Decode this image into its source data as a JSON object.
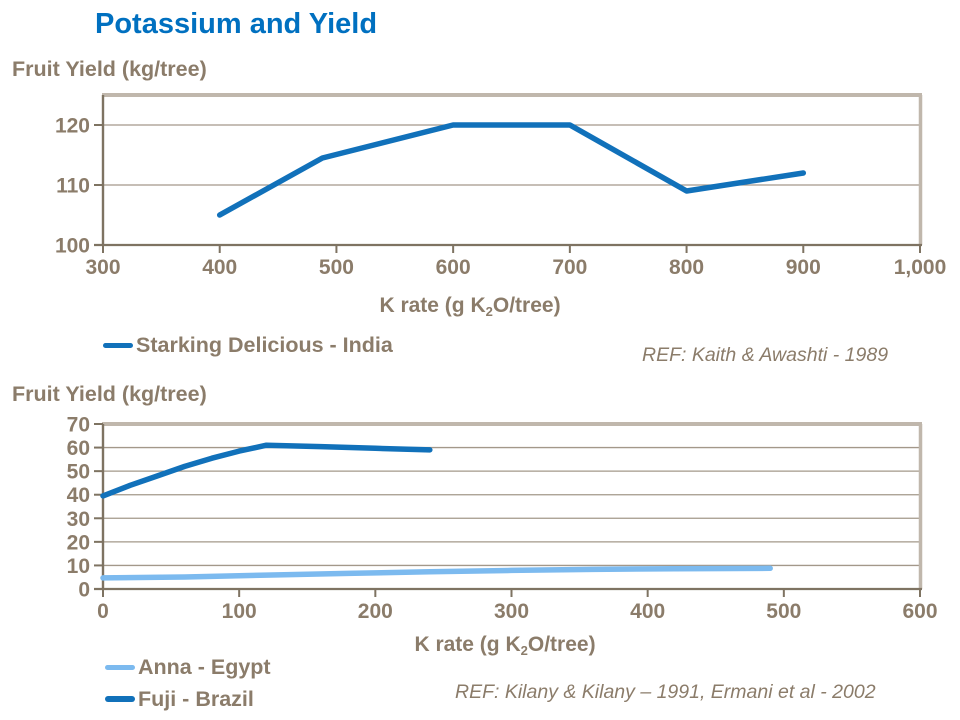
{
  "title": "Potassium and Yield",
  "colors": {
    "title": "#0070C0",
    "text": "#8B7C6A",
    "grid": "#A3988A",
    "axis": "#7E7362",
    "border_light": "#C0B7AC",
    "dark_blue": "#1171BA",
    "light_blue": "#7CBAEF"
  },
  "chart_data": [
    {
      "type": "line",
      "ylabel": "Fruit Yield (kg/tree)",
      "xlabel": {
        "pre": "K rate (g K",
        "sub": "2",
        "post": "O/tree)"
      },
      "ref": "REF: Kaith & Awashti - 1989",
      "xlim": [
        300,
        1000
      ],
      "ylim": [
        100,
        125
      ],
      "xticks": [
        300,
        400,
        500,
        600,
        700,
        800,
        900,
        1000
      ],
      "xtick_labels": [
        "300",
        "400",
        "500",
        "600",
        "700",
        "800",
        "900",
        "1,000"
      ],
      "yticks": [
        100,
        110,
        120
      ],
      "ytick_labels": [
        "100",
        "110",
        "120"
      ],
      "grid": true,
      "legend_position": "bottom-left",
      "series": [
        {
          "name": "Starking Delicious - India",
          "color": "#1171BA",
          "x": [
            400,
            488,
            600,
            700,
            800,
            900
          ],
          "y": [
            105,
            114.5,
            120,
            120,
            109,
            112
          ]
        }
      ]
    },
    {
      "type": "line",
      "ylabel": "Fruit Yield (kg/tree)",
      "xlabel": {
        "pre": "K rate (g K",
        "sub": "2",
        "post": "O/tree)"
      },
      "ref": "REF: Kilany & Kilany – 1991, Ermani et al - 2002",
      "xlim": [
        0,
        600
      ],
      "ylim": [
        0,
        70
      ],
      "xticks": [
        0,
        100,
        200,
        300,
        400,
        500,
        600
      ],
      "xtick_labels": [
        "0",
        "100",
        "200",
        "300",
        "400",
        "500",
        "600"
      ],
      "yticks": [
        0,
        10,
        20,
        30,
        40,
        50,
        60,
        70
      ],
      "ytick_labels": [
        "0",
        "10",
        "20",
        "30",
        "40",
        "50",
        "60",
        "70"
      ],
      "grid": true,
      "legend_position": "bottom-left",
      "series": [
        {
          "name": "Anna - Egypt",
          "color": "#7CBAEF",
          "x": [
            0,
            60,
            120,
            180,
            240,
            300,
            360,
            420,
            490
          ],
          "y": [
            4.7,
            5.1,
            5.9,
            6.6,
            7.3,
            7.9,
            8.3,
            8.6,
            8.8
          ]
        },
        {
          "name": "Fuji - Brazil",
          "color": "#1171BA",
          "x": [
            0,
            20,
            40,
            60,
            80,
            100,
            120,
            160,
            200,
            240
          ],
          "y": [
            39.5,
            44,
            48,
            52,
            55.5,
            58.5,
            61,
            60.4,
            59.7,
            59
          ]
        }
      ]
    }
  ]
}
